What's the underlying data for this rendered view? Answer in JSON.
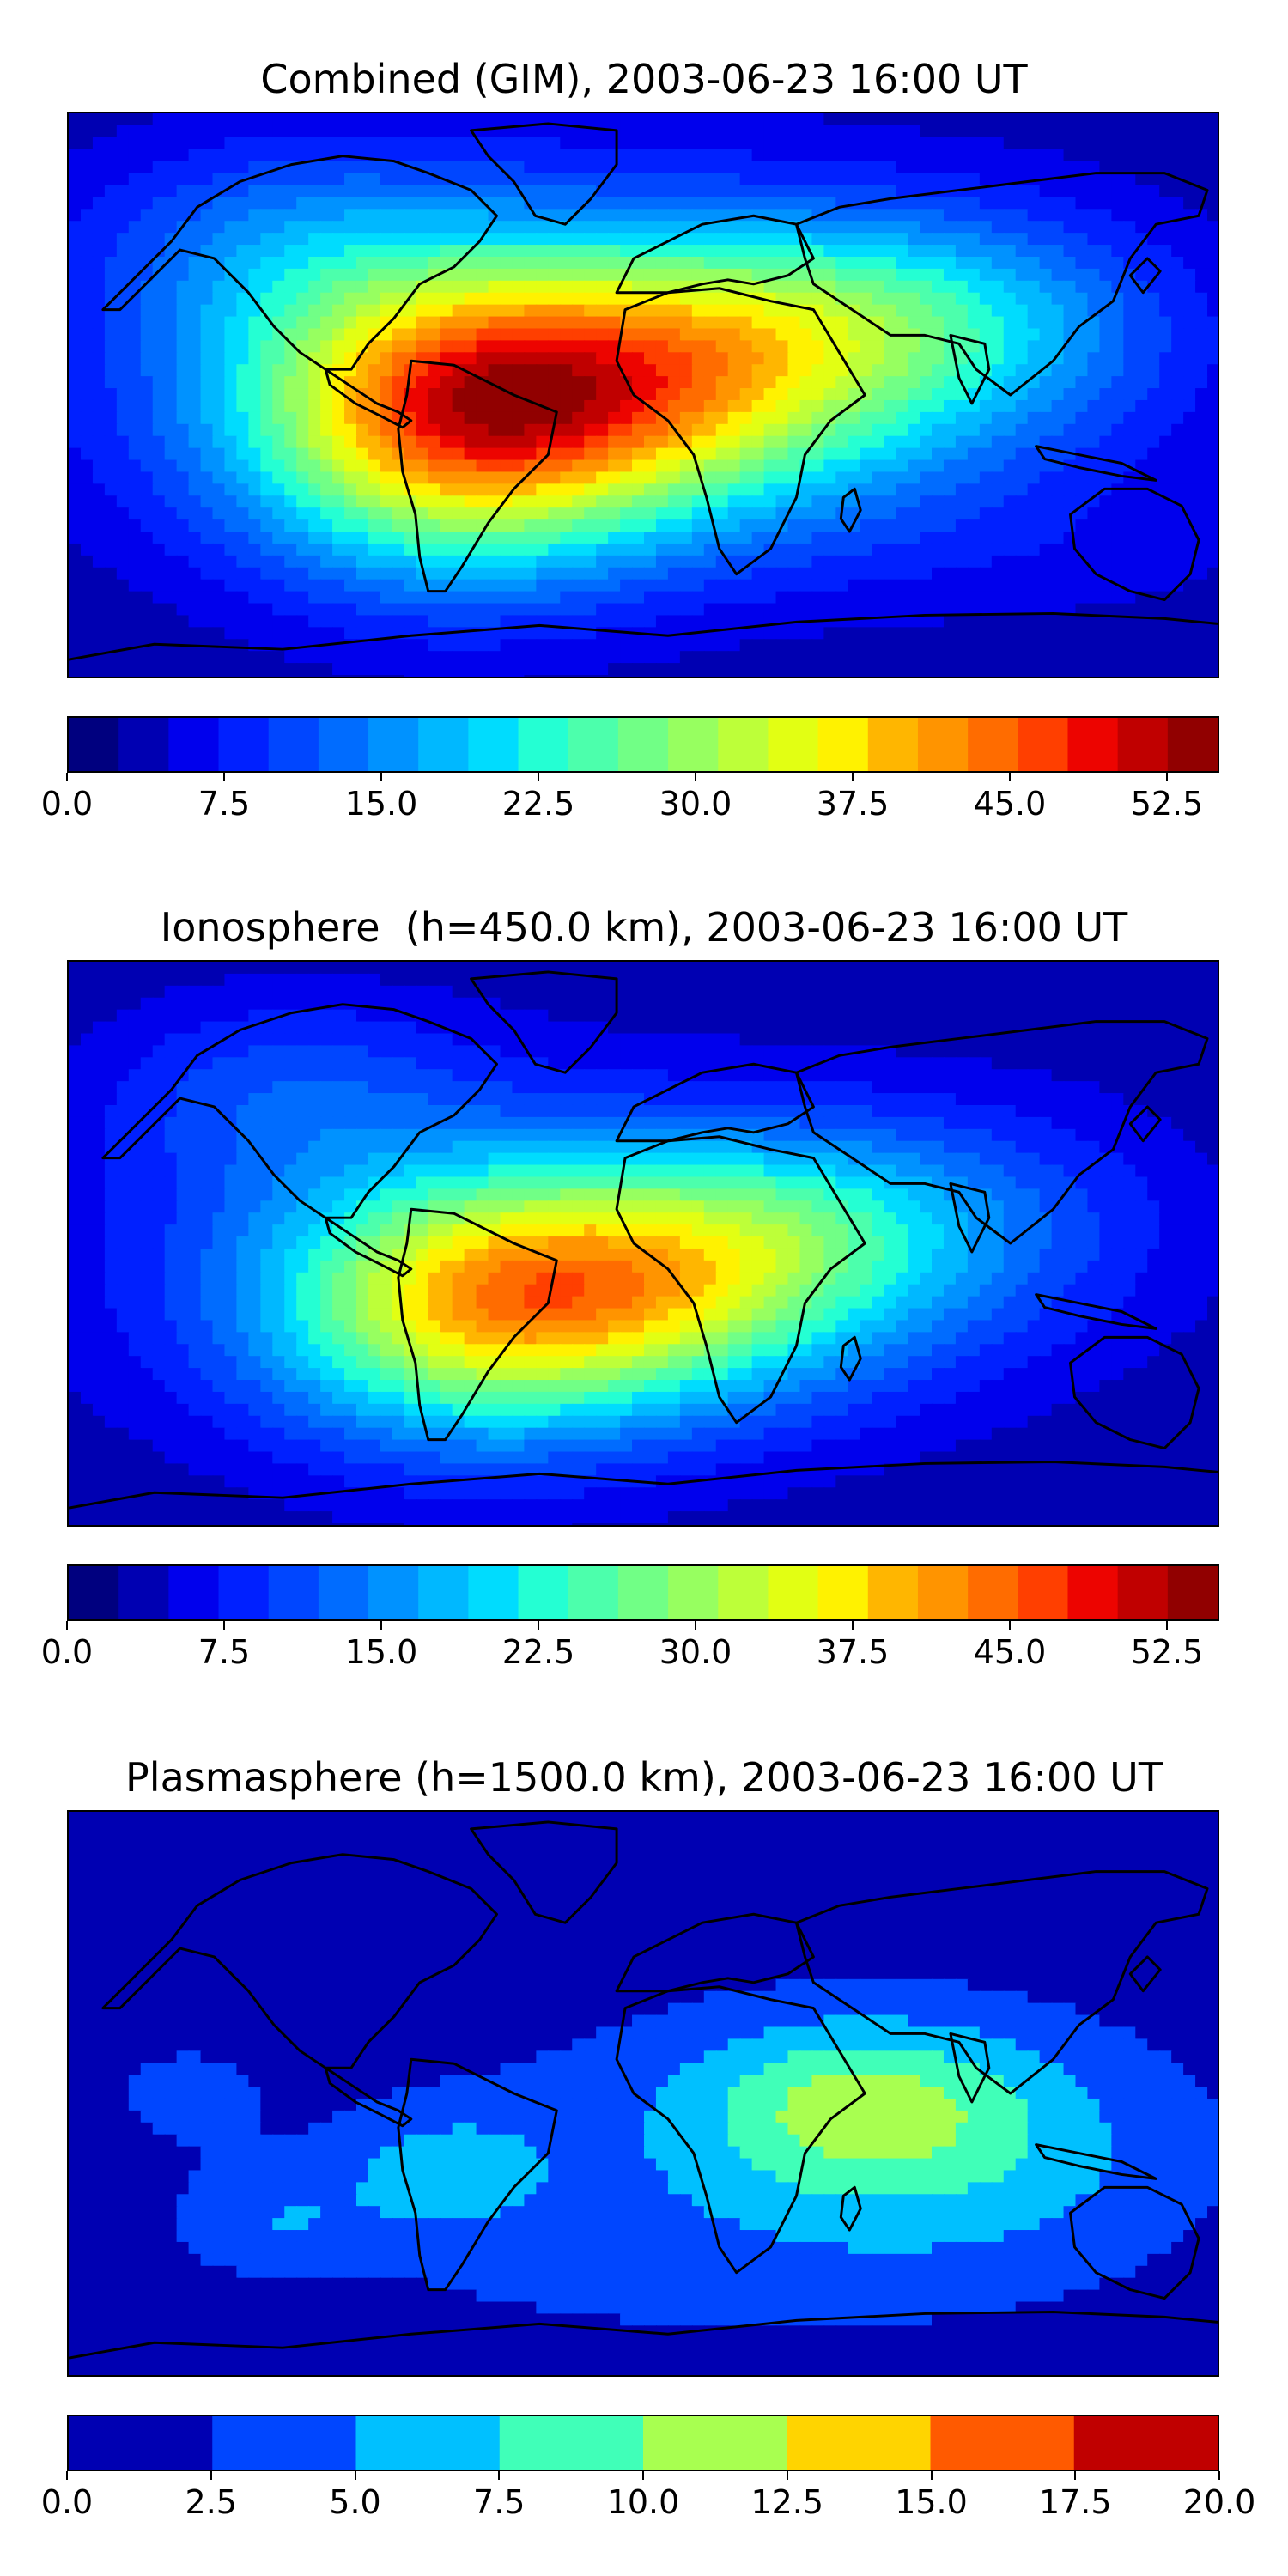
{
  "figure": {
    "panels": [
      {
        "id": "combined",
        "title": "Combined (GIM), 2003-06-23 16:00 UT",
        "colorbar": {
          "min": 0.0,
          "max": 55.0,
          "step": 2.5,
          "tick_labels": [
            "0.0",
            "7.5",
            "15.0",
            "22.5",
            "30.0",
            "37.5",
            "45.0",
            "52.5"
          ],
          "tick_values": [
            0.0,
            7.5,
            15.0,
            22.5,
            30.0,
            37.5,
            45.0,
            52.5
          ],
          "colors": [
            "#00007f",
            "#0000b2",
            "#0000ed",
            "#0020ff",
            "#0046ff",
            "#006cff",
            "#0092ff",
            "#00b8ff",
            "#00dcfe",
            "#24ffd3",
            "#4cffac",
            "#71ff86",
            "#97ff60",
            "#bdff39",
            "#e2ff13",
            "#fff200",
            "#ffb600",
            "#ff9400",
            "#ff6c00",
            "#ff3f00",
            "#ed0400",
            "#c00000",
            "#910000"
          ]
        },
        "peak_value": 55
      },
      {
        "id": "ionosphere",
        "title": "Ionosphere  (h=450.0 km), 2003-06-23 16:00 UT",
        "colorbar": {
          "min": 0.0,
          "max": 55.0,
          "step": 2.5,
          "tick_labels": [
            "0.0",
            "7.5",
            "15.0",
            "22.5",
            "30.0",
            "37.5",
            "45.0",
            "52.5"
          ],
          "tick_values": [
            0.0,
            7.5,
            15.0,
            22.5,
            30.0,
            37.5,
            45.0,
            52.5
          ],
          "colors": [
            "#00007f",
            "#0000b2",
            "#0000ed",
            "#0020ff",
            "#0046ff",
            "#006cff",
            "#0092ff",
            "#00b8ff",
            "#00dcfe",
            "#24ffd3",
            "#4cffac",
            "#71ff86",
            "#97ff60",
            "#bdff39",
            "#e2ff13",
            "#fff200",
            "#ffb600",
            "#ff9400",
            "#ff6c00",
            "#ff3f00",
            "#ed0400",
            "#c00000",
            "#910000"
          ]
        },
        "peak_value": 46
      },
      {
        "id": "plasmasphere",
        "title": "Plasmasphere (h=1500.0 km), 2003-06-23 16:00 UT",
        "colorbar": {
          "min": 0.0,
          "max": 20.0,
          "step": 2.5,
          "tick_labels": [
            "0.0",
            "2.5",
            "5.0",
            "7.5",
            "10.0",
            "12.5",
            "15.0",
            "17.5",
            "20.0"
          ],
          "tick_values": [
            0.0,
            2.5,
            5.0,
            7.5,
            10.0,
            12.5,
            15.0,
            17.5,
            20.0
          ],
          "colors": [
            "#0000b2",
            "#0046ff",
            "#00c0ff",
            "#40ffb8",
            "#a8ff50",
            "#ffd400",
            "#ff5a00",
            "#c00000"
          ]
        },
        "peak_value": 12
      }
    ]
  }
}
